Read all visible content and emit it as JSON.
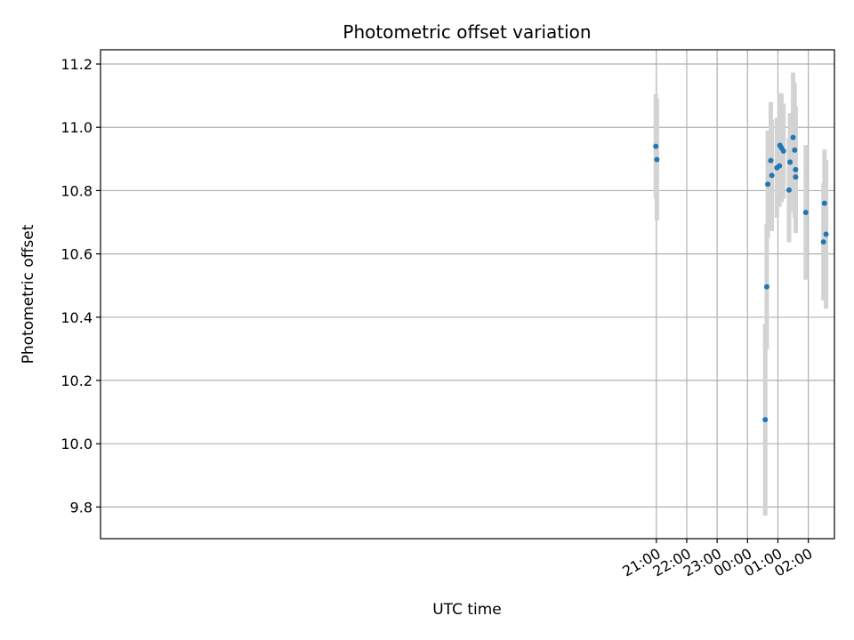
{
  "chart_data": {
    "type": "scatter",
    "title": "Photometric offset variation",
    "xlabel": "UTC time",
    "ylabel": "Photometric offset",
    "x_unit": "hours since 00:00 UTC",
    "xlim": [
      -21.29,
      2.86
    ],
    "ylim": [
      9.7,
      11.245
    ],
    "x_ticks": [
      {
        "value": -3,
        "label": "21:00"
      },
      {
        "value": -2,
        "label": "22:00"
      },
      {
        "value": -1,
        "label": "23:00"
      },
      {
        "value": 0,
        "label": "00:00"
      },
      {
        "value": 1,
        "label": "01:00"
      },
      {
        "value": 2,
        "label": "02:00"
      }
    ],
    "y_ticks": [
      9.8,
      10.0,
      10.2,
      10.4,
      10.6,
      10.8,
      11.0,
      11.2
    ],
    "grid": true,
    "colors": {
      "marker": "#1f77b4",
      "errorbar": "#d3d3d3",
      "grid": "#b0b0b0"
    },
    "points": [
      {
        "time": "20:59",
        "y": 10.94,
        "err": 0.165
      },
      {
        "time": "21:01",
        "y": 10.898,
        "err": 0.193
      },
      {
        "time": "00:35",
        "y": 10.076,
        "err": 0.303
      },
      {
        "time": "00:38",
        "y": 10.496,
        "err": 0.198
      },
      {
        "time": "00:40",
        "y": 10.82,
        "err": 0.17
      },
      {
        "time": "00:46",
        "y": 10.895,
        "err": 0.185
      },
      {
        "time": "00:48",
        "y": 10.848,
        "err": 0.176
      },
      {
        "time": "00:58",
        "y": 10.872,
        "err": 0.158
      },
      {
        "time": "01:03",
        "y": 10.878,
        "err": 0.13
      },
      {
        "time": "01:04",
        "y": 10.943,
        "err": 0.165
      },
      {
        "time": "01:07",
        "y": 10.935,
        "err": 0.172
      },
      {
        "time": "01:11",
        "y": 10.925,
        "err": 0.15
      },
      {
        "time": "01:22",
        "y": 10.802,
        "err": 0.165
      },
      {
        "time": "01:24",
        "y": 10.89,
        "err": 0.155
      },
      {
        "time": "01:30",
        "y": 10.968,
        "err": 0.205
      },
      {
        "time": "01:33",
        "y": 10.928,
        "err": 0.213
      },
      {
        "time": "01:35",
        "y": 10.866,
        "err": 0.2
      },
      {
        "time": "01:35",
        "y": 10.843,
        "err": 0.175
      },
      {
        "time": "01:55",
        "y": 10.731,
        "err": 0.213
      },
      {
        "time": "02:30",
        "y": 10.638,
        "err": 0.185
      },
      {
        "time": "02:32",
        "y": 10.76,
        "err": 0.17
      },
      {
        "time": "02:35",
        "y": 10.662,
        "err": 0.235
      }
    ]
  }
}
